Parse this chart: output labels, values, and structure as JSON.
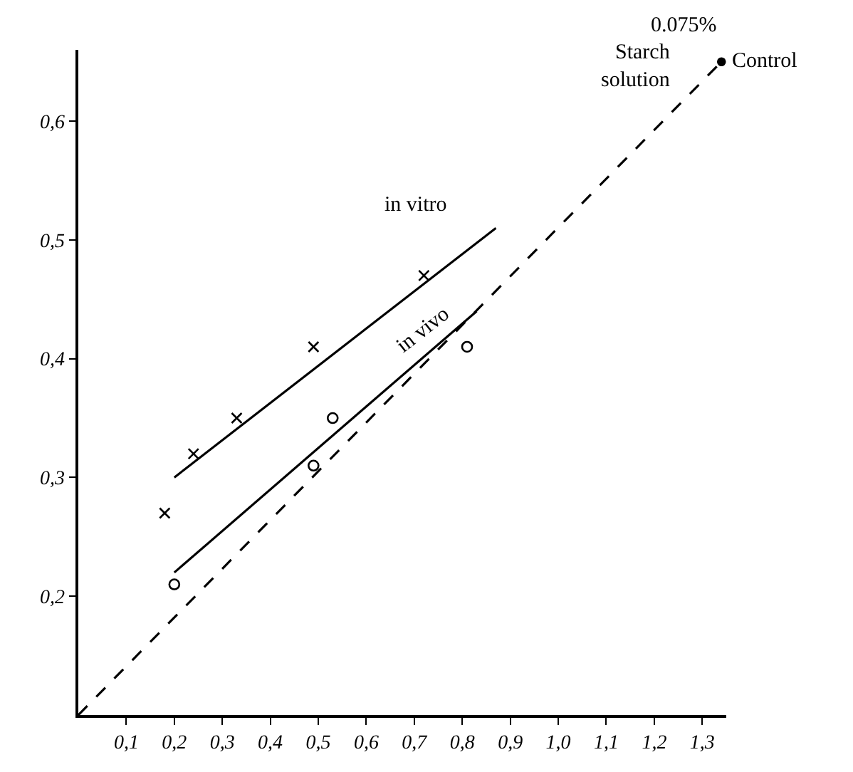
{
  "chart_data": {
    "type": "scatter",
    "xlim": [
      0,
      1.35
    ],
    "ylim": [
      0.1,
      0.66
    ],
    "xticks": [
      {
        "value": 0.1,
        "label": "0,1"
      },
      {
        "value": 0.2,
        "label": "0,2"
      },
      {
        "value": 0.3,
        "label": "0,3"
      },
      {
        "value": 0.4,
        "label": "0,4"
      },
      {
        "value": 0.5,
        "label": "0,5"
      },
      {
        "value": 0.6,
        "label": "0,6"
      },
      {
        "value": 0.7,
        "label": "0,7"
      },
      {
        "value": 0.8,
        "label": "0,8"
      },
      {
        "value": 0.9,
        "label": "0,9"
      },
      {
        "value": 1.0,
        "label": "1,0"
      },
      {
        "value": 1.1,
        "label": "1,1"
      },
      {
        "value": 1.2,
        "label": "1,2"
      },
      {
        "value": 1.3,
        "label": "1,3"
      }
    ],
    "yticks": [
      {
        "value": 0.2,
        "label": "0,2"
      },
      {
        "value": 0.3,
        "label": "0,3"
      },
      {
        "value": 0.4,
        "label": "0,4"
      },
      {
        "value": 0.5,
        "label": "0,5"
      },
      {
        "value": 0.6,
        "label": "0,6"
      }
    ],
    "series": [
      {
        "marker": "cross",
        "color": "#000000",
        "x": [
          0.18,
          0.24,
          0.33,
          0.49,
          0.72
        ],
        "values": [
          0.27,
          0.32,
          0.35,
          0.41,
          0.47
        ]
      },
      {
        "type": "line",
        "line_style": "solid",
        "color": "#000000",
        "x": [
          0.2,
          0.87
        ],
        "values": [
          0.3,
          0.51
        ]
      },
      {
        "type": "scatter",
        "marker": "circle",
        "color": "#000000",
        "x": [
          0.2,
          0.49,
          0.53,
          0.81
        ],
        "values": [
          0.21,
          0.31,
          0.35,
          0.41
        ]
      },
      {
        "type": "line",
        "line_style": "solid",
        "color": "#000000",
        "x": [
          0.2,
          0.83
        ],
        "values": [
          0.22,
          0.44
        ]
      },
      {
        "type": "line",
        "line_style": "dashed",
        "color": "#000000",
        "x": [
          0,
          1.34
        ],
        "values": [
          0.1,
          0.65
        ]
      },
      {
        "type": "scatter",
        "marker": "circle",
        "color": "#000000",
        "x": [
          1.34
        ],
        "values": [
          0.65
        ]
      }
    ],
    "annotations": [
      "0.075%",
      "Starch\nsolution",
      {
        "text": "Control",
        "x": 1.34,
        "y": 0.65
      },
      "in vitro",
      "in vivo"
    ]
  }
}
